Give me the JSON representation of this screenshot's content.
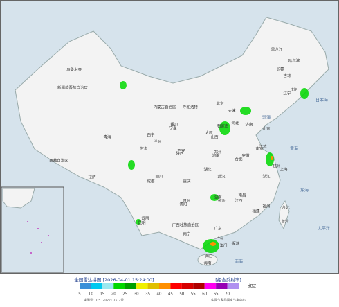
{
  "header": {
    "title": "全国雷达拼图 [2026-04-01 15:24:00]",
    "product": "[组合反射率]",
    "unit": "dBZ"
  },
  "footer": {
    "approval": "审图号：GS (2022) 0372号",
    "source": "中国气象局国家气象中心"
  },
  "legend": {
    "items": [
      {
        "value": 5,
        "color": "#3a8fd8"
      },
      {
        "value": 10,
        "color": "#00c8f0"
      },
      {
        "value": 15,
        "color": "#9ae8f0"
      },
      {
        "value": 20,
        "color": "#00d800"
      },
      {
        "value": 25,
        "color": "#00a000"
      },
      {
        "value": 30,
        "color": "#f0f000"
      },
      {
        "value": 35,
        "color": "#e0c000"
      },
      {
        "value": 40,
        "color": "#ff9000"
      },
      {
        "value": 45,
        "color": "#ff0000"
      },
      {
        "value": 50,
        "color": "#d60000"
      },
      {
        "value": 55,
        "color": "#b00000"
      },
      {
        "value": 60,
        "color": "#ff00f0"
      },
      {
        "value": 65,
        "color": "#9600b4"
      },
      {
        "value": 70,
        "color": "#b090f0"
      }
    ]
  },
  "map": {
    "labels": [
      "新疆维吾尔自治区",
      "乌鲁木齐",
      "西藏自治区",
      "拉萨",
      "青海",
      "西宁",
      "甘肃",
      "兰州",
      "内蒙古自治区",
      "呼和浩特",
      "黑龙江",
      "哈尔滨",
      "吉林",
      "长春",
      "辽宁",
      "沈阳",
      "北京",
      "天津",
      "河北",
      "石家庄",
      "山西",
      "太原",
      "宁夏",
      "银川",
      "陕西",
      "西安",
      "河南",
      "郑州",
      "山东",
      "济南",
      "四川",
      "成都",
      "重庆",
      "湖北",
      "武汉",
      "安徽",
      "合肥",
      "江苏",
      "南京",
      "上海",
      "浙江",
      "杭州",
      "云南",
      "昆明",
      "贵州",
      "贵阳",
      "湖南",
      "长沙",
      "江西",
      "南昌",
      "福建",
      "福州",
      "广西壮族自治区",
      "南宁",
      "广东",
      "广州",
      "香港",
      "澳门",
      "海南",
      "海口",
      "台湾",
      "台北",
      "渤海",
      "黄海",
      "东海",
      "南海",
      "太平洋",
      "日本海"
    ]
  }
}
